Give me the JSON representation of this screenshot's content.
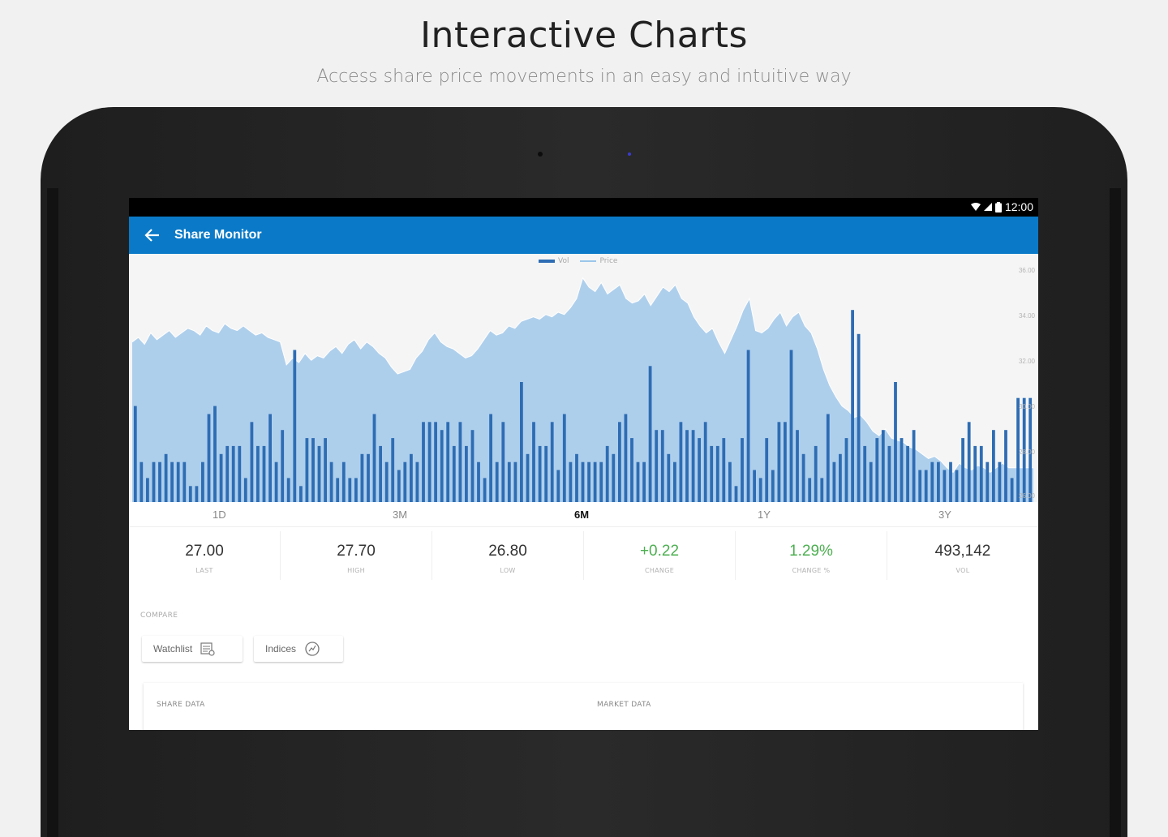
{
  "hero": {
    "title": "Interactive Charts",
    "subtitle": "Access share price movements in an easy and intuitive way"
  },
  "status_bar": {
    "time": "12:00",
    "icons": [
      "wifi-icon",
      "signal-icon",
      "battery-icon"
    ]
  },
  "app_bar": {
    "title": "Share Monitor",
    "back_icon": "arrow-left-icon",
    "color": "#0a7ac8"
  },
  "chart_data": {
    "type": "bar",
    "legend": [
      "Vol",
      "Price"
    ],
    "series": [
      {
        "name": "Vol",
        "kind": "bar",
        "color": "#2e6db4",
        "values": [
          12,
          5,
          3,
          5,
          5,
          6,
          5,
          5,
          5,
          2,
          2,
          5,
          11,
          12,
          6,
          7,
          7,
          7,
          3,
          10,
          7,
          7,
          11,
          5,
          9,
          3,
          19,
          2,
          8,
          8,
          7,
          8,
          5,
          3,
          5,
          3,
          3,
          6,
          6,
          11,
          7,
          5,
          8,
          4,
          5,
          6,
          5,
          10,
          10,
          10,
          9,
          10,
          7,
          10,
          7,
          9,
          5,
          3,
          11,
          5,
          10,
          5,
          5,
          15,
          6,
          10,
          7,
          7,
          10,
          4,
          11,
          5,
          6,
          5,
          5,
          5,
          5,
          7,
          6,
          10,
          11,
          8,
          5,
          5,
          17,
          9,
          9,
          6,
          5,
          10,
          9,
          9,
          8,
          10,
          7,
          7,
          8,
          5,
          2,
          8,
          19,
          4,
          3,
          8,
          4,
          10,
          10,
          19,
          9,
          6,
          3,
          7,
          3,
          11,
          5,
          6,
          8,
          24,
          21,
          7,
          5,
          8,
          9,
          7,
          15,
          8,
          7,
          9,
          4,
          4,
          5,
          5,
          4,
          5,
          4,
          8,
          10,
          7,
          7,
          5,
          9,
          5,
          9,
          3,
          13,
          13,
          13
        ]
      },
      {
        "name": "Price",
        "kind": "area",
        "color": "#9cc6ea",
        "values": [
          32.5,
          32.7,
          32.4,
          32.9,
          32.6,
          32.8,
          33.0,
          32.7,
          32.9,
          33.1,
          33.0,
          32.8,
          33.2,
          33.0,
          32.9,
          33.3,
          33.1,
          33.0,
          33.2,
          33.0,
          32.8,
          32.9,
          32.7,
          32.6,
          32.5,
          31.5,
          31.8,
          31.6,
          32.0,
          31.7,
          31.9,
          31.8,
          32.1,
          32.3,
          32.0,
          32.4,
          32.6,
          32.2,
          32.5,
          32.3,
          32.0,
          31.8,
          31.4,
          31.1,
          31.2,
          31.3,
          31.8,
          32.1,
          32.6,
          32.9,
          32.5,
          32.3,
          32.2,
          32.0,
          31.8,
          31.9,
          32.2,
          32.6,
          33.0,
          32.8,
          32.9,
          33.2,
          33.1,
          33.4,
          33.5,
          33.6,
          33.5,
          33.7,
          33.6,
          33.8,
          33.7,
          34.0,
          34.4,
          35.3,
          34.9,
          34.7,
          35.1,
          34.6,
          34.8,
          35.0,
          34.4,
          34.2,
          34.3,
          34.6,
          34.1,
          34.5,
          34.9,
          34.7,
          35.0,
          34.4,
          34.2,
          33.6,
          33.2,
          32.9,
          33.1,
          32.5,
          32.0,
          32.6,
          33.2,
          33.9,
          34.4,
          33.0,
          32.9,
          33.1,
          33.5,
          33.8,
          33.2,
          33.6,
          33.8,
          33.2,
          32.9,
          32.2,
          31.3,
          30.6,
          30.1,
          29.7,
          29.5,
          29.2,
          29.3,
          29.0,
          28.6,
          28.4,
          28.7,
          28.3,
          28.2,
          28.1,
          27.9,
          27.8,
          27.6,
          27.4,
          27.5,
          27.3,
          27.0,
          26.8,
          27.2,
          27.0,
          26.9,
          27.1,
          27.0,
          26.8,
          27.0,
          27.2,
          27.0,
          27.0,
          27.0,
          27.0,
          27.0
        ]
      }
    ],
    "price_range": [
      25.5,
      36.0
    ],
    "volume_max": 30,
    "y_tick_labels": [
      "36.00",
      "34.00",
      "32.00",
      "30.00",
      "28.00",
      "26.00"
    ],
    "x_range_tabs": [
      "1D",
      "3M",
      "6M",
      "1Y",
      "3Y"
    ],
    "active_range": "6M"
  },
  "stats": [
    {
      "value": "27.00",
      "label": "LAST",
      "color": "#333333"
    },
    {
      "value": "27.70",
      "label": "HIGH",
      "color": "#333333"
    },
    {
      "value": "26.80",
      "label": "LOW",
      "color": "#333333"
    },
    {
      "value": "+0.22",
      "label": "CHANGE",
      "color": "#4caf50"
    },
    {
      "value": "1.29%",
      "label": "CHANGE %",
      "color": "#4caf50"
    },
    {
      "value": "493,142",
      "label": "VOL",
      "color": "#333333"
    }
  ],
  "compare": {
    "label": "COMPARE",
    "watchlist": "Watchlist",
    "watchlist_icon": "watchlist-icon",
    "indices": "Indices",
    "indices_icon": "chart-circle-icon"
  },
  "data_card": {
    "share_data": "SHARE DATA",
    "market_data": "MARKET DATA"
  }
}
